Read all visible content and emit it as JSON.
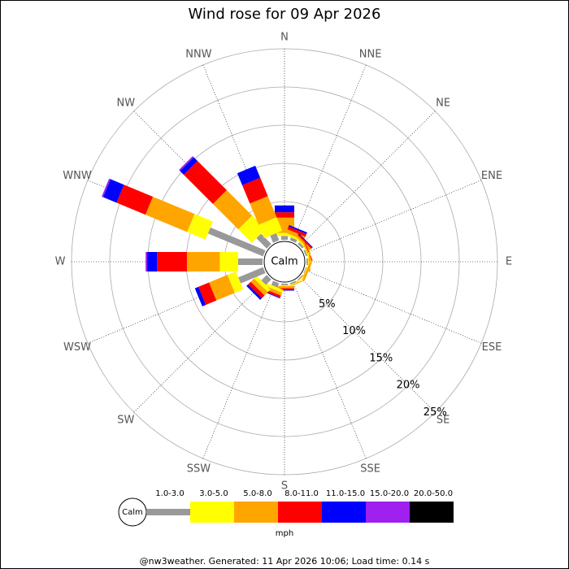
{
  "chart_data": {
    "type": "windrose",
    "title": "Wind rose for 09 Apr 2026",
    "directions": [
      "N",
      "NNE",
      "NE",
      "ENE",
      "E",
      "ESE",
      "SE",
      "SSE",
      "S",
      "SSW",
      "SW",
      "WSW",
      "W",
      "WNW",
      "NW",
      "NNW"
    ],
    "calm_label": "Calm",
    "rlim": [
      0,
      25
    ],
    "rticks": [
      {
        "value": 5,
        "label": "5%"
      },
      {
        "value": 10,
        "label": "10%"
      },
      {
        "value": 15,
        "label": "15%"
      },
      {
        "value": 20,
        "label": "20%"
      },
      {
        "value": 25,
        "label": "25%"
      }
    ],
    "series": [
      {
        "name": "1.0-3.0",
        "color": "#999999",
        "values": [
          0.5,
          0.4,
          0.3,
          0.2,
          0.2,
          0.1,
          0.1,
          0.2,
          0.2,
          0.6,
          1.0,
          3.5,
          3.2,
          7.8,
          1.9,
          1.0
        ]
      },
      {
        "name": "3.0-5.0",
        "color": "#ffff00",
        "values": [
          0.4,
          0.3,
          0.2,
          0.1,
          0.1,
          0.1,
          0,
          0.1,
          0.1,
          0.4,
          0.5,
          1.2,
          2.4,
          2.6,
          2.5,
          1.9
        ]
      },
      {
        "name": "5.0-8.0",
        "color": "#ffa500",
        "values": [
          2.0,
          0.5,
          0.3,
          0.2,
          0.2,
          0.3,
          0.1,
          0.1,
          0.3,
          0.4,
          0.6,
          2.6,
          4.3,
          5.9,
          4.7,
          3.0
        ]
      },
      {
        "name": "8.0-11.0",
        "color": "#ff0000",
        "values": [
          0.7,
          0.4,
          0.2,
          0.1,
          0,
          0,
          0,
          0,
          0.2,
          0.3,
          0.5,
          1.5,
          3.9,
          4.1,
          5.4,
          2.6
        ]
      },
      {
        "name": "11.0-15.0",
        "color": "#0000ff",
        "values": [
          0.9,
          0.2,
          0.1,
          0,
          0,
          0,
          0,
          0,
          0.1,
          0.1,
          0.3,
          0.5,
          1.3,
          1.9,
          0.7,
          1.7
        ]
      },
      {
        "name": "15.0-20.0",
        "color": "#a020f0",
        "values": [
          0,
          0,
          0,
          0,
          0,
          0,
          0,
          0,
          0,
          0,
          0,
          0,
          0.2,
          0.2,
          0.2,
          0
        ]
      },
      {
        "name": "20.0-50.0",
        "color": "#000000",
        "values": [
          0,
          0,
          0,
          0,
          0,
          0,
          0,
          0,
          0,
          0,
          0,
          0,
          0,
          0,
          0,
          0
        ]
      }
    ],
    "legend_unit": "mph",
    "footer": "@nw3weather. Generated: 11 Apr 2026 10:06; Load time: 0.14 s"
  }
}
